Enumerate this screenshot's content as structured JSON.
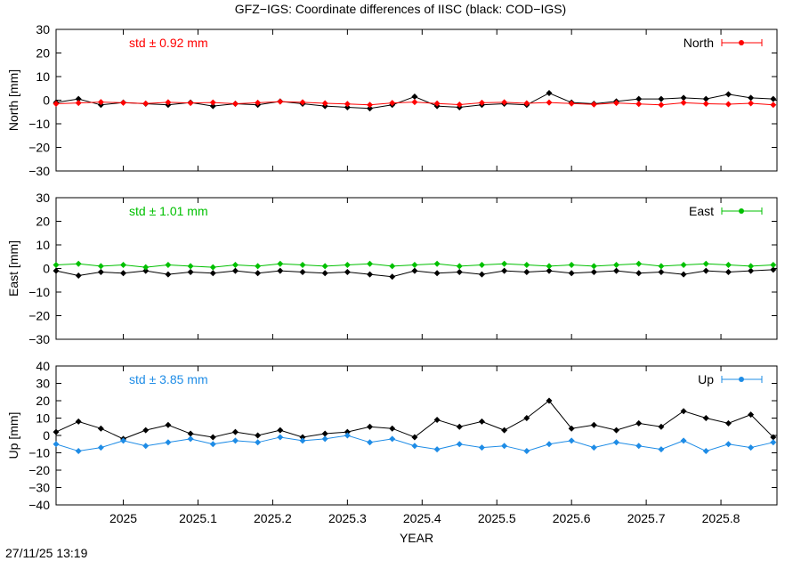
{
  "title": "GFZ−IGS: Coordinate differences of IISC (black: COD−IGS)",
  "timestamp": "27/11/25 13:19",
  "colors": {
    "north": "#ff0000",
    "east": "#00c000",
    "up": "#1e8ce6",
    "reference": "#000000"
  },
  "chart_data": [
    {
      "type": "line",
      "panel": "north",
      "ylabel": "North [mm]",
      "ylim": [
        -30,
        30
      ],
      "yticks": [
        30,
        20,
        10,
        0,
        -10,
        -20,
        -30
      ],
      "xlim": [
        2024.91,
        2025.875
      ],
      "legend": "North",
      "legend_position": "top-right",
      "std_label": "std ± 0.92 mm",
      "grid": false,
      "series": [
        {
          "name": "North",
          "color": "#ff0000",
          "x": [
            2024.91,
            2024.94,
            2024.97,
            2025.0,
            2025.03,
            2025.06,
            2025.09,
            2025.12,
            2025.15,
            2025.18,
            2025.21,
            2025.24,
            2025.27,
            2025.3,
            2025.33,
            2025.36,
            2025.39,
            2025.42,
            2025.45,
            2025.48,
            2025.51,
            2025.54,
            2025.57,
            2025.6,
            2025.63,
            2025.66,
            2025.69,
            2025.72,
            2025.75,
            2025.78,
            2025.81,
            2025.84,
            2025.87
          ],
          "values": [
            -1.5,
            -1.2,
            -0.8,
            -1.1,
            -1.4,
            -0.9,
            -1.2,
            -1.0,
            -1.5,
            -1.1,
            -0.6,
            -0.9,
            -1.3,
            -1.6,
            -2.0,
            -1.2,
            -0.8,
            -1.4,
            -1.9,
            -1.1,
            -0.9,
            -1.3,
            -1.0,
            -1.4,
            -1.8,
            -1.2,
            -1.6,
            -2.0,
            -1.1,
            -1.5,
            -1.7,
            -1.3,
            -2.0
          ]
        },
        {
          "name": "",
          "color": "#000000",
          "x": [
            2024.91,
            2024.94,
            2024.97,
            2025.0,
            2025.03,
            2025.06,
            2025.09,
            2025.12,
            2025.15,
            2025.18,
            2025.21,
            2025.24,
            2025.27,
            2025.3,
            2025.33,
            2025.36,
            2025.39,
            2025.42,
            2025.45,
            2025.48,
            2025.51,
            2025.54,
            2025.57,
            2025.6,
            2025.63,
            2025.66,
            2025.69,
            2025.72,
            2025.75,
            2025.78,
            2025.81,
            2025.84,
            2025.87
          ],
          "values": [
            -1.0,
            0.5,
            -2.0,
            -1.0,
            -1.5,
            -2.0,
            -1.0,
            -2.5,
            -1.5,
            -2.0,
            -0.5,
            -1.5,
            -2.5,
            -3.0,
            -3.5,
            -2.0,
            1.5,
            -2.5,
            -3.0,
            -2.0,
            -1.5,
            -2.0,
            3.0,
            -1.0,
            -1.5,
            -0.5,
            0.5,
            0.5,
            1.0,
            0.5,
            2.5,
            1.0,
            0.5
          ]
        }
      ]
    },
    {
      "type": "line",
      "panel": "east",
      "ylabel": "East [mm]",
      "ylim": [
        -30,
        30
      ],
      "yticks": [
        30,
        20,
        10,
        0,
        -10,
        -20,
        -30
      ],
      "xlim": [
        2024.91,
        2025.875
      ],
      "legend": "East",
      "legend_position": "top-right",
      "std_label": "std ± 1.01 mm",
      "grid": false,
      "series": [
        {
          "name": "East",
          "color": "#00c000",
          "x": [
            2024.91,
            2024.94,
            2024.97,
            2025.0,
            2025.03,
            2025.06,
            2025.09,
            2025.12,
            2025.15,
            2025.18,
            2025.21,
            2025.24,
            2025.27,
            2025.3,
            2025.33,
            2025.36,
            2025.39,
            2025.42,
            2025.45,
            2025.48,
            2025.51,
            2025.54,
            2025.57,
            2025.6,
            2025.63,
            2025.66,
            2025.69,
            2025.72,
            2025.75,
            2025.78,
            2025.81,
            2025.84,
            2025.87
          ],
          "values": [
            1.5,
            2.0,
            1.0,
            1.5,
            0.5,
            1.5,
            1.0,
            0.5,
            1.5,
            1.0,
            2.0,
            1.5,
            1.0,
            1.5,
            2.0,
            1.0,
            1.5,
            2.0,
            1.0,
            1.5,
            2.0,
            1.5,
            1.0,
            1.5,
            1.0,
            1.5,
            2.0,
            1.0,
            1.5,
            2.0,
            1.5,
            1.0,
            1.5
          ]
        },
        {
          "name": "",
          "color": "#000000",
          "x": [
            2024.91,
            2024.94,
            2024.97,
            2025.0,
            2025.03,
            2025.06,
            2025.09,
            2025.12,
            2025.15,
            2025.18,
            2025.21,
            2025.24,
            2025.27,
            2025.3,
            2025.33,
            2025.36,
            2025.39,
            2025.42,
            2025.45,
            2025.48,
            2025.51,
            2025.54,
            2025.57,
            2025.6,
            2025.63,
            2025.66,
            2025.69,
            2025.72,
            2025.75,
            2025.78,
            2025.81,
            2025.84,
            2025.87
          ],
          "values": [
            -1.0,
            -3.0,
            -1.5,
            -2.0,
            -1.0,
            -2.5,
            -1.5,
            -2.0,
            -1.0,
            -2.0,
            -1.0,
            -1.5,
            -2.0,
            -1.5,
            -2.5,
            -3.5,
            -1.0,
            -2.0,
            -1.5,
            -2.5,
            -1.0,
            -1.5,
            -1.0,
            -2.0,
            -1.5,
            -1.0,
            -2.0,
            -1.5,
            -2.5,
            -1.0,
            -1.5,
            -1.0,
            -0.5
          ]
        }
      ]
    },
    {
      "type": "line",
      "panel": "up",
      "ylabel": "Up [mm]",
      "ylim": [
        -40,
        40
      ],
      "yticks": [
        40,
        30,
        20,
        10,
        0,
        -10,
        -20,
        -30,
        -40
      ],
      "xlim": [
        2024.91,
        2025.875
      ],
      "xticks": [
        2025,
        2025.1,
        2025.2,
        2025.3,
        2025.4,
        2025.5,
        2025.6,
        2025.7,
        2025.8
      ],
      "xtick_labels": [
        "2025",
        "2025.1",
        "2025.2",
        "2025.3",
        "2025.4",
        "2025.5",
        "2025.6",
        "2025.7",
        "2025.8"
      ],
      "xlabel": "YEAR",
      "legend": "Up",
      "legend_position": "top-right",
      "std_label": "std ± 3.85 mm",
      "grid": false,
      "series": [
        {
          "name": "Up",
          "color": "#1e8ce6",
          "x": [
            2024.91,
            2024.94,
            2024.97,
            2025.0,
            2025.03,
            2025.06,
            2025.09,
            2025.12,
            2025.15,
            2025.18,
            2025.21,
            2025.24,
            2025.27,
            2025.3,
            2025.33,
            2025.36,
            2025.39,
            2025.42,
            2025.45,
            2025.48,
            2025.51,
            2025.54,
            2025.57,
            2025.6,
            2025.63,
            2025.66,
            2025.69,
            2025.72,
            2025.75,
            2025.78,
            2025.81,
            2025.84,
            2025.87
          ],
          "values": [
            -5,
            -9,
            -7,
            -3,
            -6,
            -4,
            -2,
            -5,
            -3,
            -4,
            -1,
            -3,
            -2,
            0,
            -4,
            -2,
            -6,
            -8,
            -5,
            -7,
            -6,
            -9,
            -5,
            -3,
            -7,
            -4,
            -6,
            -8,
            -3,
            -9,
            -5,
            -7,
            -4
          ]
        },
        {
          "name": "",
          "color": "#000000",
          "x": [
            2024.91,
            2024.94,
            2024.97,
            2025.0,
            2025.03,
            2025.06,
            2025.09,
            2025.12,
            2025.15,
            2025.18,
            2025.21,
            2025.24,
            2025.27,
            2025.3,
            2025.33,
            2025.36,
            2025.39,
            2025.42,
            2025.45,
            2025.48,
            2025.51,
            2025.54,
            2025.57,
            2025.6,
            2025.63,
            2025.66,
            2025.69,
            2025.72,
            2025.75,
            2025.78,
            2025.81,
            2025.84,
            2025.87
          ],
          "values": [
            2,
            8,
            4,
            -2,
            3,
            6,
            1,
            -1,
            2,
            0,
            3,
            -1,
            1,
            2,
            5,
            4,
            -1,
            9,
            5,
            8,
            3,
            10,
            20,
            4,
            6,
            3,
            7,
            5,
            14,
            10,
            7,
            12,
            -1
          ]
        }
      ]
    }
  ]
}
